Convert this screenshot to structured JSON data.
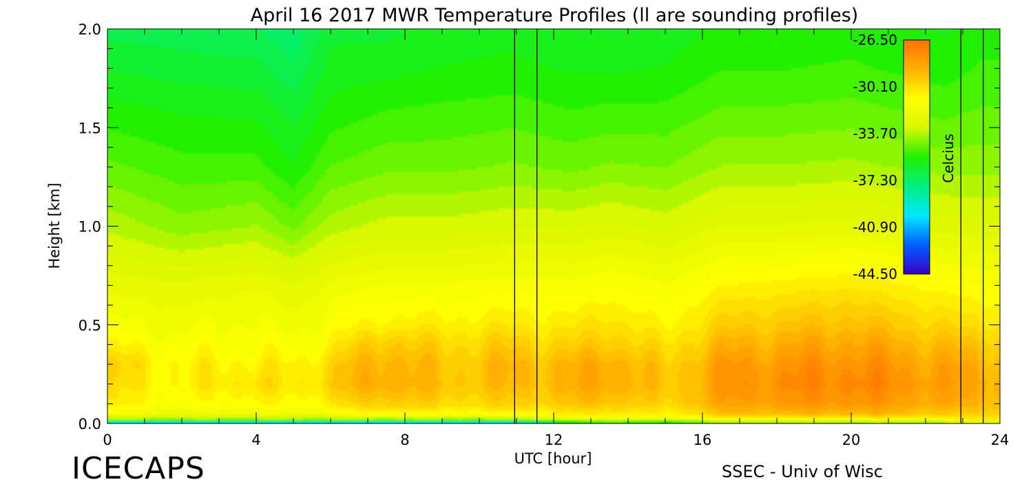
{
  "chart_data": {
    "type": "heatmap",
    "title": "April 16 2017 MWR Temperature Profiles (ll are sounding profiles)",
    "xlabel": "UTC [hour]",
    "ylabel": "Height [km]",
    "xlim": [
      0,
      24
    ],
    "ylim": [
      0.0,
      2.0
    ],
    "x_ticks": [
      0,
      4,
      8,
      12,
      16,
      20,
      24
    ],
    "x_tick_labels": [
      "0",
      "4",
      "8",
      "12",
      "16",
      "20",
      "24"
    ],
    "y_ticks": [
      0.0,
      0.5,
      1.0,
      1.5,
      2.0
    ],
    "y_tick_labels": [
      "0.0",
      "0.5",
      "1.0",
      "1.5",
      "2.0"
    ],
    "colorbar": {
      "label": "Celcius",
      "min": -44.5,
      "max": -26.5,
      "tick_labels": [
        "-26.50",
        "-30.10",
        "-33.70",
        "-37.30",
        "-40.90",
        "-44.50"
      ],
      "colors": [
        "#3a00c8",
        "#0060ff",
        "#00e8ff",
        "#00f080",
        "#20f000",
        "#d8f800",
        "#ffff00",
        "#ffb000",
        "#ff7000"
      ]
    },
    "sounding_times": [
      10.95,
      11.55,
      22.95,
      23.55
    ],
    "profile_times": [
      0,
      0.5,
      1,
      1.5,
      2,
      2.5,
      3,
      3.5,
      4,
      4.5,
      5,
      5.5,
      6,
      6.5,
      7,
      7.5,
      8,
      8.5,
      9,
      9.5,
      10,
      10.5,
      11.55,
      12,
      12.5,
      13,
      13.5,
      14,
      14.5,
      15,
      15.5,
      16,
      16.5,
      17,
      17.5,
      18,
      18.5,
      19,
      19.5,
      20,
      20.5,
      21,
      21.5,
      22,
      22.5,
      23.55,
      24
    ],
    "temperature_profiles_celsius": {
      "heights_km": [
        0.0,
        0.02,
        0.05,
        0.1,
        0.2,
        0.3,
        0.4,
        0.5,
        0.7,
        1.0,
        1.3,
        1.6,
        1.8,
        2.0
      ],
      "by_time": {
        "0": [
          -42,
          -34,
          -31.5,
          -30.6,
          -30.2,
          -29.8,
          -30.8,
          -31.5,
          -32.3,
          -33.6,
          -34.7,
          -35.6,
          -36.2,
          -36.8
        ],
        "2": [
          -42,
          -34,
          -32,
          -31.3,
          -30.8,
          -30.8,
          -31.3,
          -31.8,
          -32.5,
          -34.2,
          -35.1,
          -35.8,
          -36.4,
          -36.9
        ],
        "4": [
          -42,
          -34,
          -31.6,
          -30.8,
          -30.0,
          -30.5,
          -31.1,
          -31.5,
          -32.2,
          -33.9,
          -35.1,
          -35.9,
          -36.5,
          -37.0
        ],
        "5": [
          -42,
          -34,
          -31.8,
          -31.1,
          -30.6,
          -30.8,
          -31.4,
          -31.9,
          -32.6,
          -34.5,
          -35.7,
          -36.4,
          -37.0,
          -37.5
        ],
        "6": [
          -42,
          -34,
          -31.5,
          -30.4,
          -29.6,
          -29.8,
          -30.6,
          -31.2,
          -32.0,
          -33.7,
          -34.8,
          -35.6,
          -36.0,
          -36.3
        ],
        "7.5": [
          -42,
          -34,
          -30.6,
          -29.4,
          -28.3,
          -28.5,
          -29.2,
          -30.5,
          -31.6,
          -33.3,
          -34.5,
          -35.3,
          -35.9,
          -36.3
        ],
        "9": [
          -42,
          -34,
          -31.0,
          -30.0,
          -29.3,
          -29.5,
          -29.9,
          -30.6,
          -31.6,
          -33.3,
          -34.5,
          -35.2,
          -35.7,
          -36.0
        ],
        "10.9": [
          -42,
          -34,
          -30.8,
          -29.8,
          -29.1,
          -29.0,
          -29.6,
          -30.4,
          -31.4,
          -33.1,
          -34.3,
          -35.1,
          -35.6,
          -35.9
        ],
        "12.5": [
          -37,
          -32.5,
          -30.5,
          -29.4,
          -28.8,
          -29.0,
          -29.8,
          -30.5,
          -31.5,
          -33.1,
          -34.5,
          -35.3,
          -35.8,
          -36.2
        ],
        "13.5": [
          -36,
          -32,
          -30.2,
          -29.2,
          -28.2,
          -28.4,
          -29.3,
          -30.0,
          -31.2,
          -32.9,
          -34.3,
          -35.2,
          -35.8,
          -36.0
        ],
        "15": [
          -37,
          -32.5,
          -30.8,
          -30.0,
          -29.6,
          -29.8,
          -30.3,
          -30.9,
          -31.6,
          -33.2,
          -34.4,
          -35.2,
          -35.7,
          -36.0
        ],
        "16.5": [
          -35,
          -31,
          -29.3,
          -28.4,
          -28.0,
          -28.2,
          -28.9,
          -29.7,
          -30.8,
          -32.6,
          -33.9,
          -34.8,
          -35.3,
          -35.6
        ],
        "18": [
          -35,
          -31,
          -29.0,
          -28.1,
          -27.6,
          -27.9,
          -28.6,
          -29.4,
          -30.6,
          -32.6,
          -33.9,
          -34.8,
          -35.3,
          -35.6
        ],
        "20": [
          -35,
          -31,
          -28.8,
          -27.8,
          -27.2,
          -27.6,
          -28.3,
          -29.1,
          -30.4,
          -32.4,
          -33.8,
          -34.7,
          -35.2,
          -35.5
        ],
        "22.5": [
          -35,
          -31,
          -29.5,
          -28.6,
          -28.2,
          -28.5,
          -29.1,
          -29.9,
          -31.0,
          -32.8,
          -34.1,
          -35.0,
          -35.5,
          -35.8
        ],
        "23.55": [
          -33,
          -30.5,
          -29.5,
          -28.9,
          -28.5,
          -28.8,
          -29.4,
          -30.2,
          -31.2,
          -32.9,
          -34.1,
          -34.8,
          -35.2,
          -35.5
        ]
      }
    }
  },
  "footer": {
    "project": "ICECAPS",
    "credit": "SSEC - Univ of Wisc"
  }
}
